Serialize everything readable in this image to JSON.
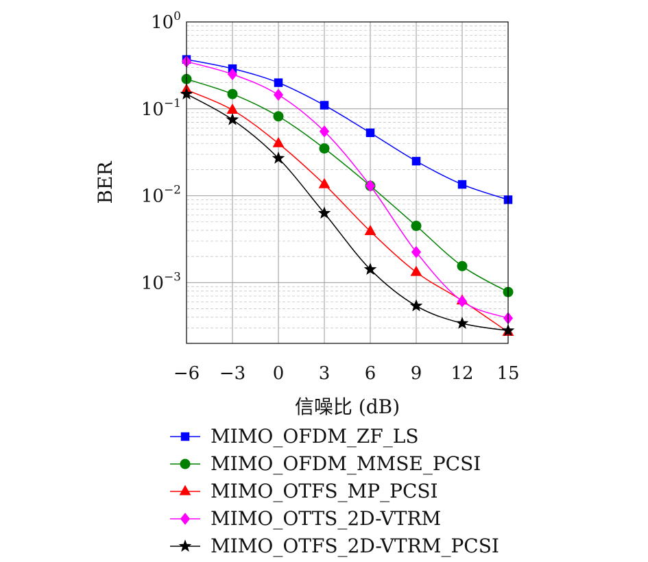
{
  "chart_data": {
    "type": "line",
    "xlabel": "信噪比 (dB)",
    "ylabel": "BER",
    "x": [
      -6,
      -3,
      0,
      3,
      6,
      9,
      12,
      15
    ],
    "x_tick_labels": [
      "−6",
      "−3",
      "0",
      "3",
      "6",
      "9",
      "12",
      "15"
    ],
    "xlim": [
      -6,
      15
    ],
    "ylim": [
      0.0002,
      1
    ],
    "yscale": "log",
    "y_ticks": [
      {
        "base": "10",
        "exp": "0",
        "value": 1
      },
      {
        "base": "10",
        "exp": "−1",
        "value": 0.1
      },
      {
        "base": "10",
        "exp": "−2",
        "value": 0.01
      },
      {
        "base": "10",
        "exp": "−3",
        "value": 0.001
      }
    ],
    "grid": true,
    "legend_position": "bottom",
    "series": [
      {
        "name": "MIMO_OFDM_ZF_LS",
        "color": "#0000ff",
        "marker": "square",
        "values": [
          0.37,
          0.29,
          0.2,
          0.11,
          0.053,
          0.025,
          0.0135,
          0.009
        ]
      },
      {
        "name": "MIMO_OFDM_MMSE_PCSI",
        "color": "#008000",
        "marker": "circle",
        "values": [
          0.22,
          0.148,
          0.082,
          0.035,
          0.013,
          0.0045,
          0.00155,
          0.00078
        ]
      },
      {
        "name": "MIMO_OTFS_MP_PCSI",
        "color": "#ff0000",
        "marker": "triangle",
        "values": [
          0.165,
          0.097,
          0.04,
          0.0135,
          0.0039,
          0.00132,
          0.00062,
          0.00027
        ]
      },
      {
        "name": "MIMO_OTTS_2D-VTRM",
        "color": "#ff00ff",
        "marker": "diamond",
        "values": [
          0.35,
          0.25,
          0.145,
          0.055,
          0.013,
          0.00225,
          0.00061,
          0.00039
        ]
      },
      {
        "name": "MIMO_OTFS_2D-VTRM_PCSI",
        "color": "#000000",
        "marker": "star",
        "values": [
          0.148,
          0.075,
          0.027,
          0.0063,
          0.00142,
          0.00054,
          0.00034,
          0.00028
        ]
      }
    ]
  }
}
